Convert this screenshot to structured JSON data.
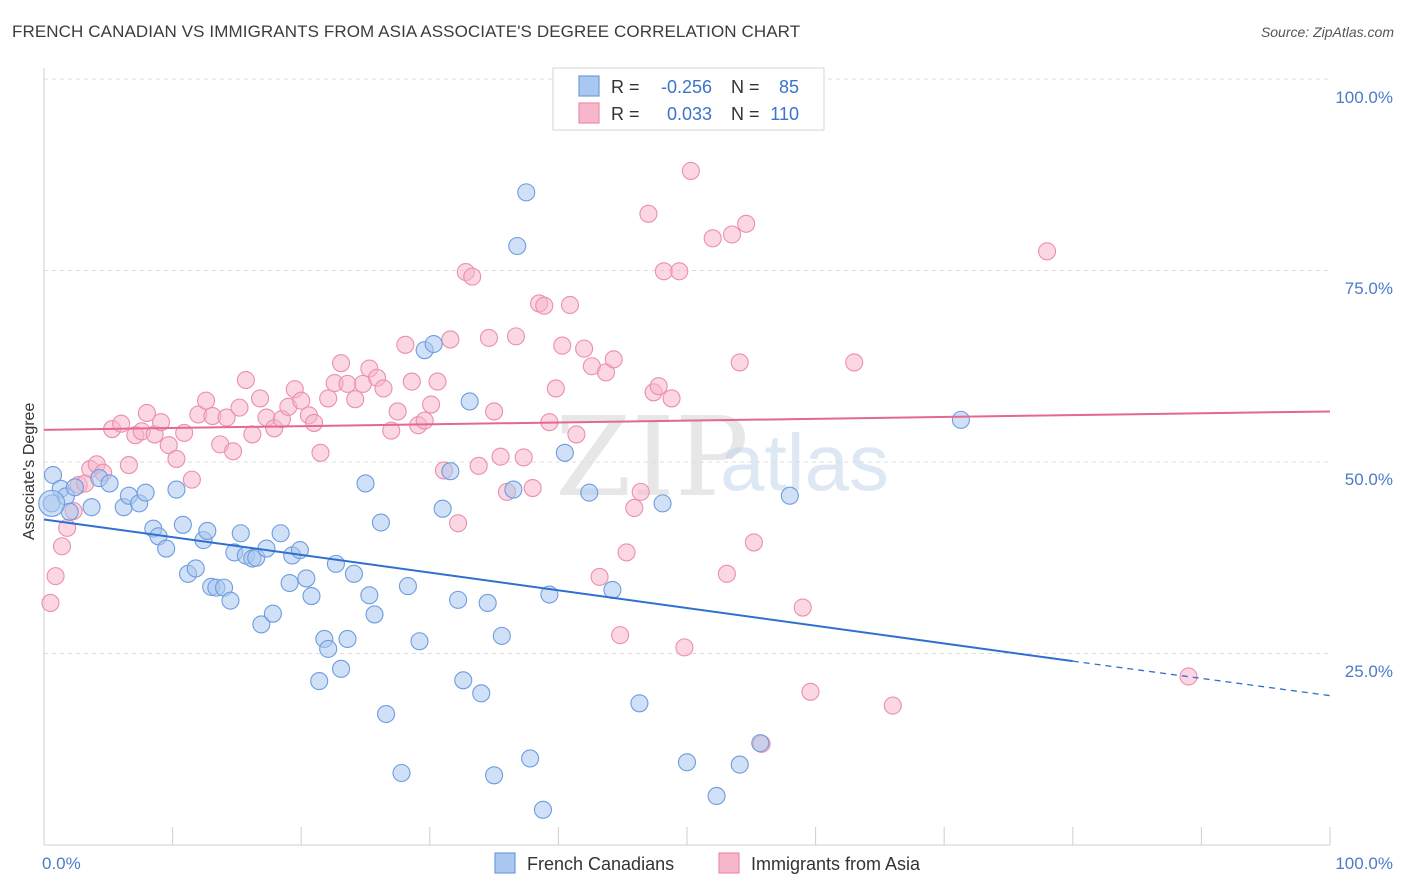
{
  "header": {
    "title": "FRENCH CANADIAN VS IMMIGRANTS FROM ASIA ASSOCIATE'S DEGREE CORRELATION CHART",
    "source": "Source: ZipAtlas.com"
  },
  "legend": {
    "r_label": "R =",
    "n_label": "N =",
    "series": [
      {
        "r": "-0.256",
        "n": "85"
      },
      {
        "r": "0.033",
        "n": "110"
      }
    ]
  },
  "bottom_legend": [
    "French Canadians",
    "Immigrants from Asia"
  ],
  "watermark": {
    "zip": "ZIP",
    "atlas": "atlas"
  },
  "colors": {
    "blue_fill": "#a9c7ef",
    "blue_stroke": "#6d9de0",
    "blue_line": "#2f6fcf",
    "pink_fill": "#f6b7cb",
    "pink_stroke": "#ec8fad",
    "pink_line": "#e46891"
  },
  "chart_data": {
    "type": "scatter",
    "title": "FRENCH CANADIAN VS IMMIGRANTS FROM ASIA ASSOCIATE'S DEGREE CORRELATION CHART",
    "xlabel": "",
    "ylabel": "Associate's Degree",
    "xlim": [
      0,
      100
    ],
    "ylim": [
      0,
      100
    ],
    "x_tick_labels": [
      "0.0%",
      "100.0%"
    ],
    "y_tick_labels": [
      "25.0%",
      "50.0%",
      "75.0%",
      "100.0%"
    ],
    "y_ticks": [
      25,
      50,
      75,
      100
    ],
    "series": [
      {
        "name": "French Canadians",
        "trend": {
          "x0": 0,
          "y0": 42.5,
          "x1": 80,
          "y1": 24.0,
          "dashed_to_x": 100,
          "dashed_to_y": 19.5
        },
        "points": [
          [
            0.6,
            44.6
          ],
          [
            0.7,
            48.3
          ],
          [
            1.3,
            46.5
          ],
          [
            1.7,
            45.5
          ],
          [
            2.0,
            43.5
          ],
          [
            2.4,
            46.7
          ],
          [
            3.7,
            44.1
          ],
          [
            4.3,
            47.9
          ],
          [
            5.1,
            47.2
          ],
          [
            6.2,
            44.1
          ],
          [
            6.6,
            45.6
          ],
          [
            7.4,
            44.6
          ],
          [
            7.9,
            46.0
          ],
          [
            8.5,
            41.3
          ],
          [
            8.9,
            40.3
          ],
          [
            9.5,
            38.7
          ],
          [
            10.3,
            46.4
          ],
          [
            10.8,
            41.8
          ],
          [
            11.2,
            35.4
          ],
          [
            11.8,
            36.1
          ],
          [
            12.4,
            39.8
          ],
          [
            12.7,
            41.0
          ],
          [
            13.0,
            33.7
          ],
          [
            13.4,
            33.6
          ],
          [
            14.0,
            33.6
          ],
          [
            14.5,
            31.9
          ],
          [
            14.8,
            38.2
          ],
          [
            15.3,
            40.7
          ],
          [
            15.7,
            37.8
          ],
          [
            16.2,
            37.4
          ],
          [
            16.5,
            37.5
          ],
          [
            16.9,
            28.8
          ],
          [
            17.3,
            38.7
          ],
          [
            17.8,
            30.2
          ],
          [
            18.4,
            40.7
          ],
          [
            19.1,
            34.2
          ],
          [
            19.3,
            37.8
          ],
          [
            19.9,
            38.5
          ],
          [
            20.4,
            34.8
          ],
          [
            20.8,
            32.5
          ],
          [
            21.4,
            21.4
          ],
          [
            21.8,
            26.9
          ],
          [
            22.1,
            25.6
          ],
          [
            22.7,
            36.7
          ],
          [
            23.1,
            23.0
          ],
          [
            23.6,
            26.9
          ],
          [
            24.1,
            35.4
          ],
          [
            25.0,
            47.2
          ],
          [
            25.3,
            32.6
          ],
          [
            25.7,
            30.1
          ],
          [
            26.2,
            42.1
          ],
          [
            26.6,
            17.1
          ],
          [
            27.8,
            9.4
          ],
          [
            28.3,
            33.8
          ],
          [
            29.2,
            26.6
          ],
          [
            29.6,
            64.6
          ],
          [
            30.3,
            65.4
          ],
          [
            31.0,
            43.9
          ],
          [
            31.6,
            48.8
          ],
          [
            32.2,
            32.0
          ],
          [
            32.6,
            21.5
          ],
          [
            33.1,
            57.9
          ],
          [
            34.0,
            19.8
          ],
          [
            34.5,
            31.6
          ],
          [
            35.0,
            9.1
          ],
          [
            35.6,
            27.3
          ],
          [
            36.5,
            46.4
          ],
          [
            36.8,
            78.2
          ],
          [
            37.5,
            85.2
          ],
          [
            37.8,
            11.3
          ],
          [
            38.8,
            4.6
          ],
          [
            39.3,
            32.7
          ],
          [
            40.5,
            51.2
          ],
          [
            42.4,
            46.0
          ],
          [
            44.2,
            33.3
          ],
          [
            46.3,
            18.5
          ],
          [
            48.1,
            44.6
          ],
          [
            50.0,
            10.8
          ],
          [
            52.3,
            6.4
          ],
          [
            54.1,
            10.5
          ],
          [
            55.7,
            13.3
          ],
          [
            58.0,
            45.6
          ],
          [
            71.3,
            55.5
          ]
        ]
      },
      {
        "name": "Immigrants from Asia",
        "trend": {
          "x0": 0,
          "y0": 54.2,
          "x1": 100,
          "y1": 56.6
        },
        "points": [
          [
            0.5,
            31.6
          ],
          [
            0.9,
            35.1
          ],
          [
            1.4,
            39.0
          ],
          [
            1.8,
            41.4
          ],
          [
            2.3,
            43.6
          ],
          [
            2.7,
            47.0
          ],
          [
            3.2,
            47.2
          ],
          [
            3.6,
            49.1
          ],
          [
            4.1,
            49.7
          ],
          [
            4.6,
            48.6
          ],
          [
            5.3,
            54.3
          ],
          [
            6.0,
            55.0
          ],
          [
            6.6,
            49.6
          ],
          [
            7.1,
            53.5
          ],
          [
            7.6,
            54.0
          ],
          [
            8.0,
            56.4
          ],
          [
            8.6,
            53.6
          ],
          [
            9.1,
            55.2
          ],
          [
            9.7,
            52.2
          ],
          [
            10.3,
            50.4
          ],
          [
            10.9,
            53.8
          ],
          [
            11.5,
            47.7
          ],
          [
            12.0,
            56.2
          ],
          [
            12.6,
            58.0
          ],
          [
            13.1,
            56.0
          ],
          [
            13.7,
            52.3
          ],
          [
            14.2,
            55.8
          ],
          [
            14.7,
            51.4
          ],
          [
            15.2,
            57.1
          ],
          [
            15.7,
            60.7
          ],
          [
            16.2,
            53.6
          ],
          [
            16.8,
            58.3
          ],
          [
            17.3,
            55.8
          ],
          [
            17.9,
            54.4
          ],
          [
            18.5,
            55.6
          ],
          [
            19.0,
            57.2
          ],
          [
            19.5,
            59.5
          ],
          [
            20.0,
            58.0
          ],
          [
            20.6,
            56.1
          ],
          [
            21.0,
            55.1
          ],
          [
            21.5,
            51.2
          ],
          [
            22.1,
            58.3
          ],
          [
            22.6,
            60.3
          ],
          [
            23.1,
            62.9
          ],
          [
            23.6,
            60.2
          ],
          [
            24.2,
            58.2
          ],
          [
            24.8,
            60.2
          ],
          [
            25.3,
            62.2
          ],
          [
            25.9,
            61.0
          ],
          [
            26.4,
            59.6
          ],
          [
            27.0,
            54.1
          ],
          [
            27.5,
            56.6
          ],
          [
            28.1,
            65.3
          ],
          [
            28.6,
            60.5
          ],
          [
            29.1,
            54.8
          ],
          [
            29.6,
            55.4
          ],
          [
            30.1,
            57.5
          ],
          [
            30.6,
            60.5
          ],
          [
            31.1,
            48.9
          ],
          [
            31.6,
            66.0
          ],
          [
            32.2,
            42.0
          ],
          [
            32.8,
            74.8
          ],
          [
            33.3,
            74.2
          ],
          [
            33.8,
            49.5
          ],
          [
            34.6,
            66.2
          ],
          [
            35.0,
            56.6
          ],
          [
            35.5,
            50.7
          ],
          [
            36.0,
            46.1
          ],
          [
            36.7,
            66.4
          ],
          [
            37.3,
            50.6
          ],
          [
            38.0,
            46.6
          ],
          [
            38.5,
            70.7
          ],
          [
            38.9,
            70.4
          ],
          [
            39.3,
            55.2
          ],
          [
            39.8,
            59.6
          ],
          [
            40.3,
            65.2
          ],
          [
            40.9,
            70.5
          ],
          [
            41.4,
            53.6
          ],
          [
            42.0,
            64.8
          ],
          [
            42.6,
            62.5
          ],
          [
            43.2,
            35.0
          ],
          [
            43.7,
            61.7
          ],
          [
            44.3,
            63.4
          ],
          [
            44.8,
            27.4
          ],
          [
            45.3,
            38.2
          ],
          [
            45.9,
            44.0
          ],
          [
            46.4,
            46.1
          ],
          [
            47.0,
            82.4
          ],
          [
            47.4,
            59.1
          ],
          [
            47.8,
            59.9
          ],
          [
            48.2,
            74.9
          ],
          [
            48.8,
            58.3
          ],
          [
            49.4,
            74.9
          ],
          [
            49.8,
            25.8
          ],
          [
            50.3,
            88.0
          ],
          [
            52.0,
            79.2
          ],
          [
            53.1,
            35.4
          ],
          [
            53.5,
            79.7
          ],
          [
            54.1,
            63.0
          ],
          [
            54.6,
            81.1
          ],
          [
            55.2,
            39.5
          ],
          [
            55.8,
            13.2
          ],
          [
            59.0,
            31.0
          ],
          [
            59.6,
            20.0
          ],
          [
            63.0,
            63.0
          ],
          [
            66.0,
            18.2
          ],
          [
            78.0,
            77.5
          ],
          [
            89.0,
            22.0
          ]
        ]
      }
    ]
  }
}
